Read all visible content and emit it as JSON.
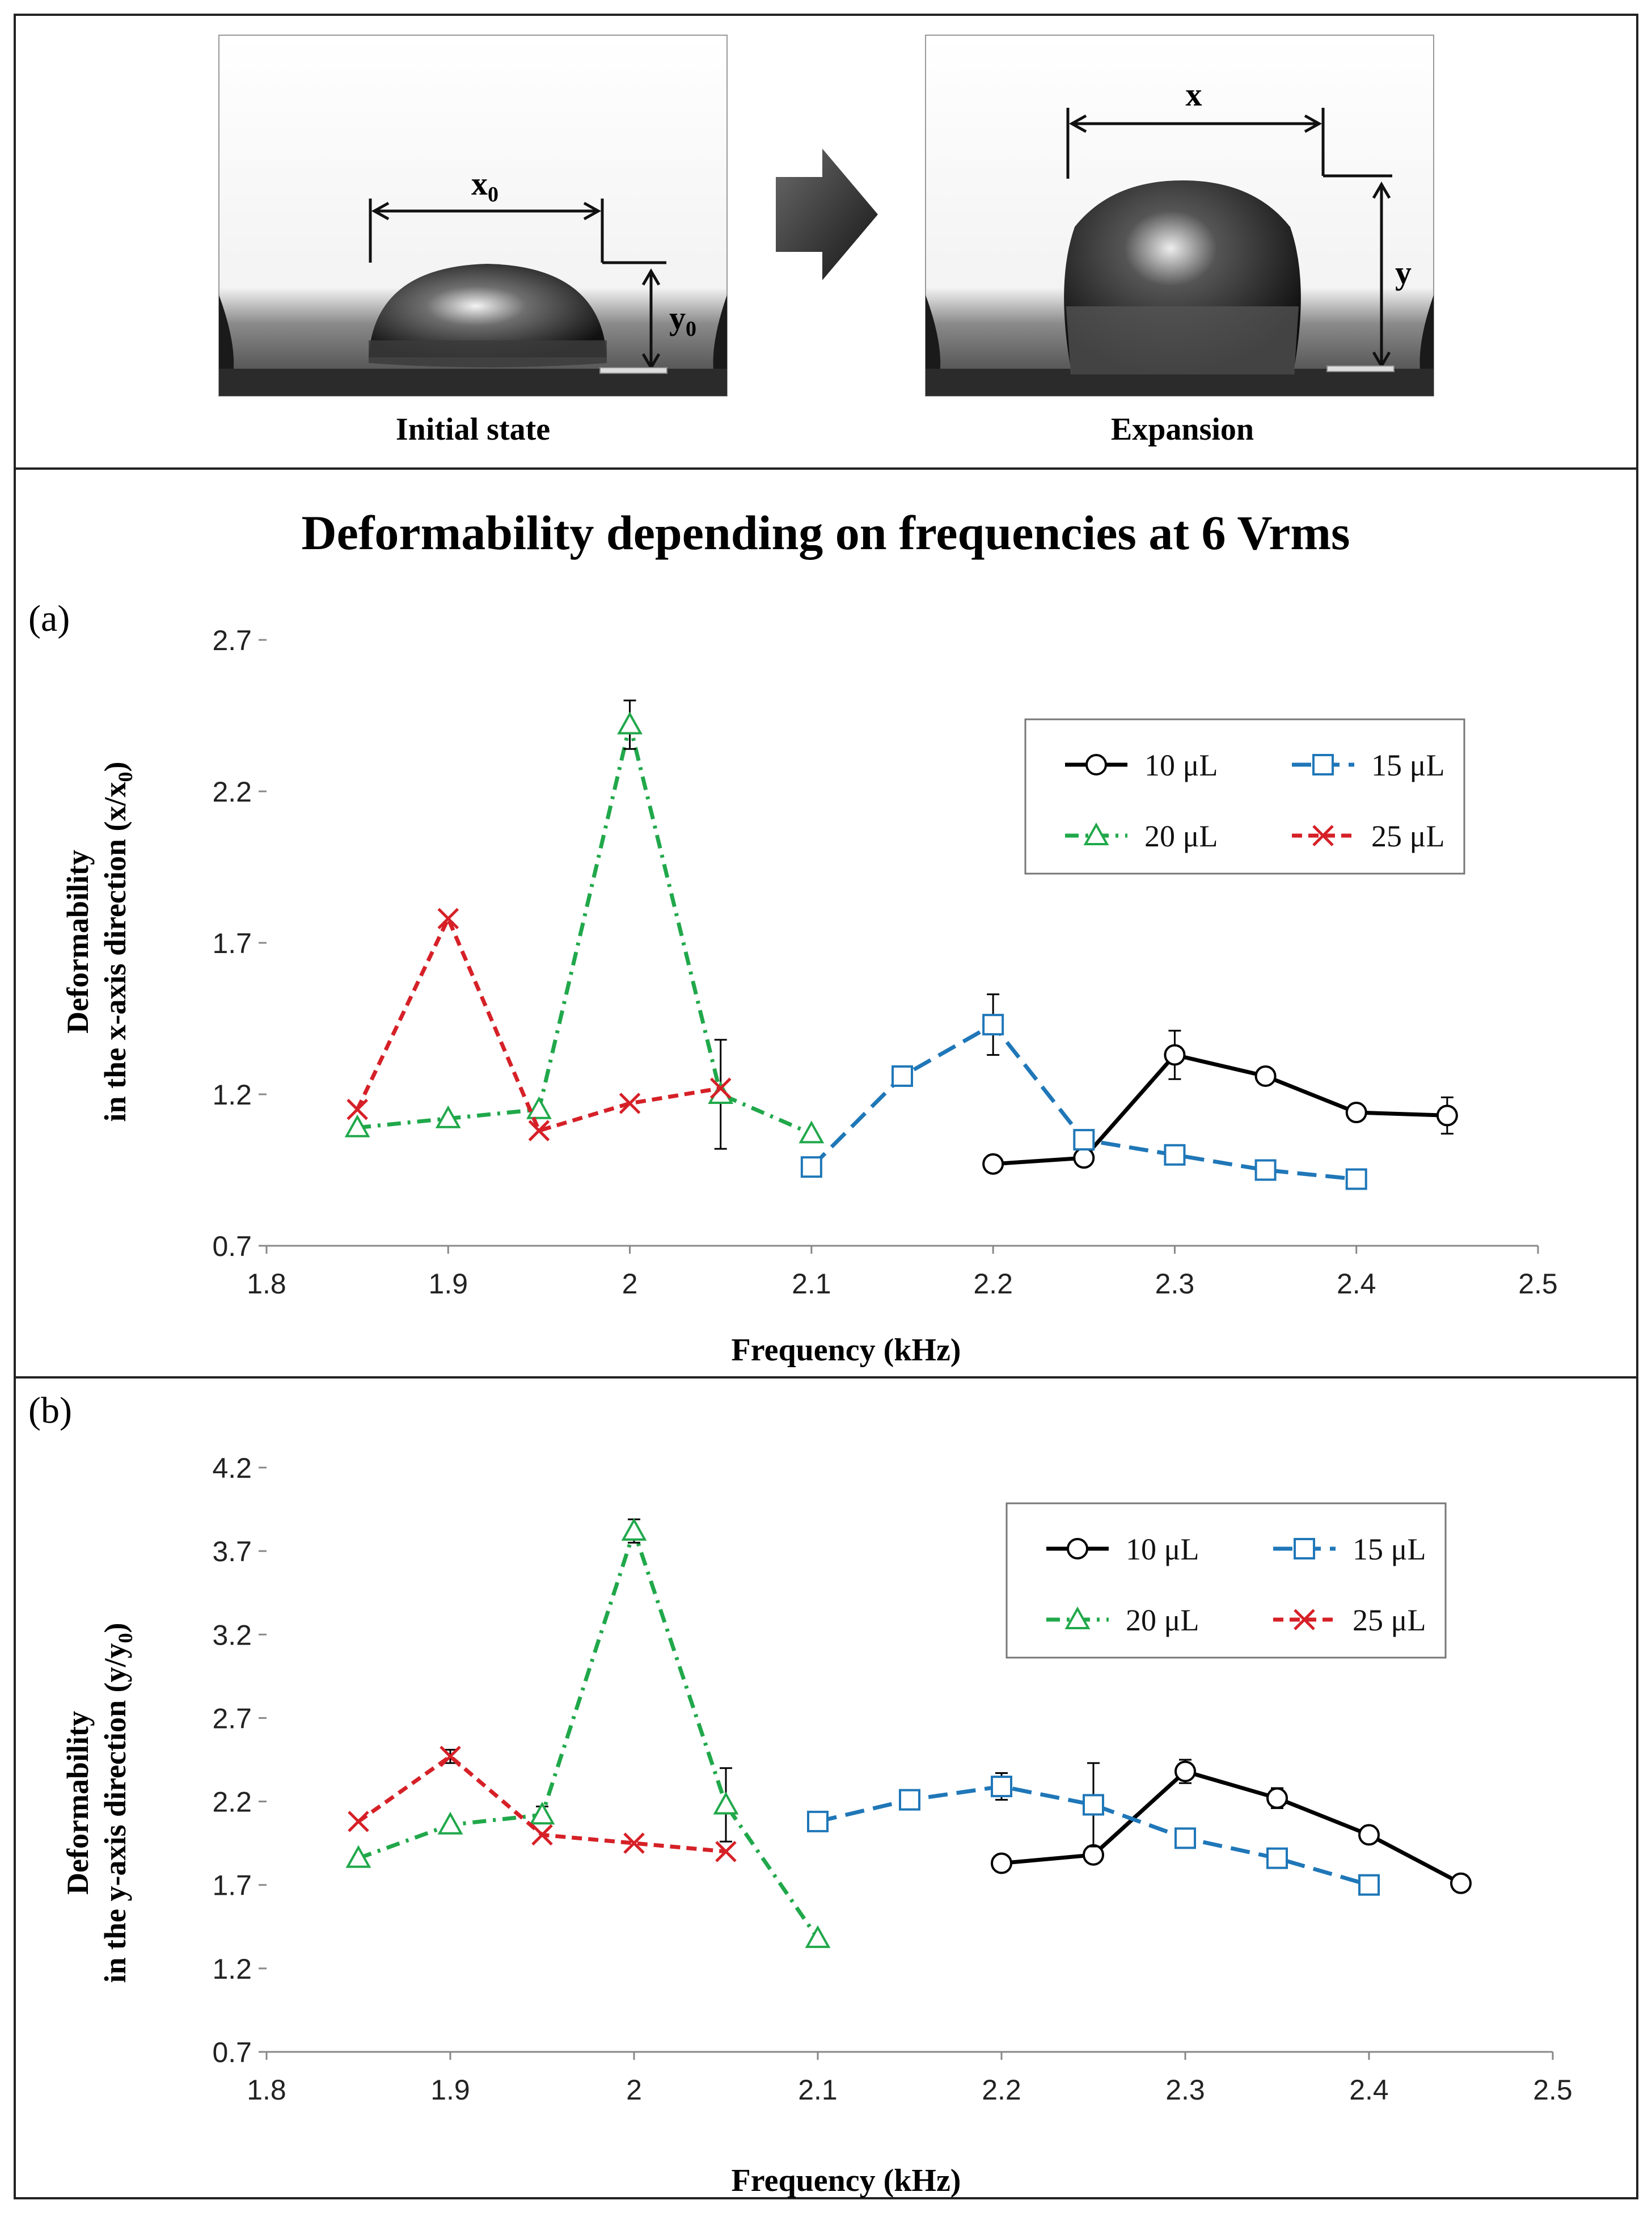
{
  "figure_title": "Deformability depending on frequencies at 6 Vrms",
  "photos": {
    "initial": {
      "caption": "Initial state",
      "width_label": "x",
      "width_sub": "0",
      "height_label": "y",
      "height_sub": "0"
    },
    "expansion": {
      "caption": "Expansion",
      "width_label": "x",
      "height_label": "y"
    },
    "arrow": "arrow-right-icon"
  },
  "colors": {
    "10uL": "#000000",
    "15uL": "#1f77b8",
    "20uL": "#20a84a",
    "25uL": "#d62027",
    "border": "#222222"
  },
  "chart_data": [
    {
      "type": "line",
      "panel_label": "(a)",
      "title": "",
      "xlabel": "Frequency (kHz)",
      "ylabel_line1": "Deformability",
      "ylabel_line2": "in the x-axis direction (x/x",
      "ylabel_sub": "0",
      "ylabel_tail": ")",
      "xlim": [
        1.8,
        2.5
      ],
      "ylim": [
        0.7,
        2.7
      ],
      "xticks": [
        "1.8",
        "1.9",
        "2",
        "2.1",
        "2.2",
        "2.3",
        "2.4",
        "2.5"
      ],
      "yticks": [
        "0.7",
        "1.2",
        "1.7",
        "2.2",
        "2.7"
      ],
      "legend_position": "top-right",
      "series": [
        {
          "key": "10uL",
          "name": "10 μL",
          "marker": "circle",
          "dash": "solid",
          "x": [
            2.2,
            2.25,
            2.3,
            2.35,
            2.4,
            2.45
          ],
          "y": [
            0.97,
            0.99,
            1.33,
            1.26,
            1.14,
            1.13
          ],
          "err": [
            0,
            0,
            0.08,
            0,
            0,
            0.06
          ]
        },
        {
          "key": "15uL",
          "name": "15 μL",
          "marker": "square",
          "dash": "longdash",
          "x": [
            2.1,
            2.15,
            2.2,
            2.25,
            2.3,
            2.35,
            2.4
          ],
          "y": [
            0.96,
            1.26,
            1.43,
            1.05,
            1.0,
            0.95,
            0.92
          ],
          "err": [
            0,
            0,
            0.1,
            0,
            0,
            0,
            0
          ]
        },
        {
          "key": "20uL",
          "name": "20 μL",
          "marker": "triangle",
          "dash": "dashdot",
          "x": [
            1.85,
            1.9,
            1.95,
            2.0,
            2.05,
            2.1
          ],
          "y": [
            1.09,
            1.12,
            1.15,
            2.42,
            1.2,
            1.07
          ],
          "err": [
            0,
            0,
            0,
            0.08,
            0.18,
            0
          ]
        },
        {
          "key": "25uL",
          "name": "25 μL",
          "marker": "cross",
          "dash": "dash",
          "x": [
            1.85,
            1.9,
            1.95,
            2.0,
            2.05
          ],
          "y": [
            1.15,
            1.78,
            1.08,
            1.17,
            1.22
          ],
          "err": [
            0,
            0,
            0,
            0,
            0
          ]
        }
      ]
    },
    {
      "type": "line",
      "panel_label": "(b)",
      "title": "",
      "xlabel": "Frequency (kHz)",
      "ylabel_line1": "Deformability",
      "ylabel_line2": "in the y-axis direction (y/y",
      "ylabel_sub": "0",
      "ylabel_tail": ")",
      "xlim": [
        1.8,
        2.5
      ],
      "ylim": [
        0.7,
        4.2
      ],
      "xticks": [
        "1.8",
        "1.9",
        "2",
        "2.1",
        "2.2",
        "2.3",
        "2.4",
        "2.5"
      ],
      "yticks": [
        "0.7",
        "1.2",
        "1.7",
        "2.2",
        "2.7",
        "3.2",
        "3.7",
        "4.2"
      ],
      "legend_position": "top-right",
      "series": [
        {
          "key": "10uL",
          "name": "10 μL",
          "marker": "circle",
          "dash": "solid",
          "x": [
            2.2,
            2.25,
            2.3,
            2.35,
            2.4,
            2.45
          ],
          "y": [
            1.83,
            1.88,
            2.38,
            2.22,
            2.0,
            1.71
          ],
          "err": [
            0,
            0,
            0.07,
            0.06,
            0,
            0
          ]
        },
        {
          "key": "15uL",
          "name": "15 μL",
          "marker": "square",
          "dash": "longdash",
          "x": [
            2.1,
            2.15,
            2.2,
            2.25,
            2.3,
            2.35,
            2.4
          ],
          "y": [
            2.08,
            2.21,
            2.29,
            2.18,
            1.98,
            1.86,
            1.7
          ],
          "err": [
            0,
            0,
            0.08,
            0.25,
            0,
            0,
            0
          ]
        },
        {
          "key": "20uL",
          "name": "20 μL",
          "marker": "triangle",
          "dash": "dashdot",
          "x": [
            1.85,
            1.9,
            1.95,
            2.0,
            2.05,
            2.1
          ],
          "y": [
            1.86,
            2.06,
            2.12,
            3.82,
            2.18,
            1.38
          ],
          "err": [
            0,
            0,
            0.05,
            0.07,
            0.22,
            0
          ]
        },
        {
          "key": "25uL",
          "name": "25 μL",
          "marker": "cross",
          "dash": "dash",
          "x": [
            1.85,
            1.9,
            1.95,
            2.0,
            2.05
          ],
          "y": [
            2.08,
            2.47,
            2.0,
            1.95,
            1.9
          ],
          "err": [
            0,
            0.04,
            0,
            0,
            0
          ]
        }
      ]
    }
  ]
}
